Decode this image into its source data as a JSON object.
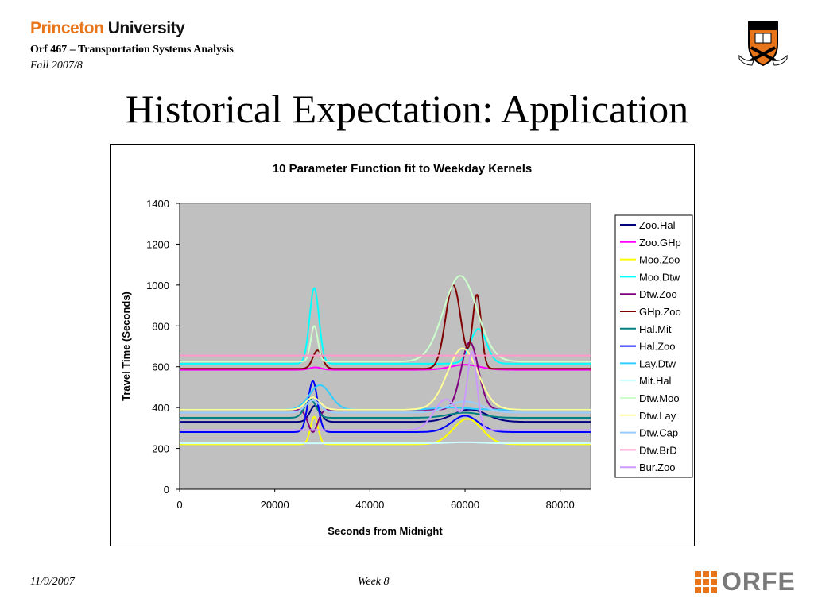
{
  "header": {
    "logo_part1": "Princeton",
    "logo_part2": "University",
    "course": "Orf 467 – Transportation Systems Analysis",
    "term": "Fall 2007/8"
  },
  "slide_title": "Historical Expectation: Application",
  "footer": {
    "date": "11/9/2007",
    "week": "Week 8",
    "orfe_logo": "ORFE"
  },
  "chart_data": {
    "type": "line",
    "title": "10 Parameter Function fit to Weekday Kernels",
    "xlabel": "Seconds from Midnight",
    "ylabel": "Travel Time (Seconds)",
    "xlim": [
      0,
      86400
    ],
    "ylim": [
      0,
      1400
    ],
    "xticks": [
      0,
      20000,
      40000,
      60000,
      80000
    ],
    "yticks": [
      0,
      200,
      400,
      600,
      800,
      1000,
      1200,
      1400
    ],
    "plot_background": "#c0c0c0",
    "grid": false,
    "legend_position": "right",
    "series": [
      {
        "name": "Zoo.Hal",
        "color": "#000080",
        "base": 330,
        "peaks": [
          [
            28500,
            1100,
            80
          ],
          [
            61000,
            3500,
            60
          ]
        ]
      },
      {
        "name": "Zoo.GHp",
        "color": "#ff00ff",
        "base": 585,
        "peaks": [
          [
            28500,
            1200,
            12
          ],
          [
            60000,
            3000,
            25
          ]
        ]
      },
      {
        "name": "Moo.Zoo",
        "color": "#ffff00",
        "base": 220,
        "peaks": [
          [
            28300,
            800,
            135
          ],
          [
            60500,
            3000,
            125
          ]
        ]
      },
      {
        "name": "Moo.Dtw",
        "color": "#00ffff",
        "base": 615,
        "peaks": [
          [
            28300,
            1000,
            370
          ],
          [
            62800,
            1700,
            170
          ]
        ]
      },
      {
        "name": "Dtw.Zoo",
        "color": "#800080",
        "base": 390,
        "peaks": [
          [
            28000,
            1000,
            -110
          ],
          [
            61000,
            1800,
            330
          ]
        ]
      },
      {
        "name": "GHp.Zoo",
        "color": "#800000",
        "base": 590,
        "peaks": [
          [
            29000,
            1000,
            90
          ],
          [
            57500,
            1600,
            410
          ],
          [
            62500,
            900,
            360
          ]
        ]
      },
      {
        "name": "Hal.Mit",
        "color": "#008080",
        "base": 350,
        "peaks": [
          [
            27500,
            1200,
            90
          ],
          [
            60000,
            3500,
            25
          ]
        ]
      },
      {
        "name": "Hal.Zoo",
        "color": "#0000ff",
        "base": 280,
        "peaks": [
          [
            28000,
            1000,
            250
          ],
          [
            60000,
            2800,
            80
          ]
        ]
      },
      {
        "name": "Lay.Dtw",
        "color": "#33ccff",
        "base": 390,
        "peaks": [
          [
            29500,
            2200,
            120
          ],
          [
            57000,
            3500,
            10
          ]
        ]
      },
      {
        "name": "Mit.Hal",
        "color": "#ccffff",
        "base": 225,
        "peaks": [
          [
            60000,
            3500,
            5
          ]
        ]
      },
      {
        "name": "Dtw.Moo",
        "color": "#ccffcc",
        "base": 625,
        "peaks": [
          [
            28300,
            750,
            175
          ],
          [
            59000,
            3500,
            420
          ]
        ]
      },
      {
        "name": "Dtw.Lay",
        "color": "#ffff99",
        "base": 390,
        "peaks": [
          [
            28000,
            1500,
            60
          ],
          [
            59500,
            3200,
            300
          ]
        ]
      },
      {
        "name": "Dtw.Cap",
        "color": "#99ccff",
        "base": 375,
        "peaks": [
          [
            28000,
            1500,
            60
          ],
          [
            60000,
            3500,
            55
          ]
        ]
      },
      {
        "name": "Dtw.BrD",
        "color": "#ff99cc",
        "base": 655,
        "peaks": []
      },
      {
        "name": "Bur.Zoo",
        "color": "#cc99ff",
        "base": 290,
        "peaks": [
          [
            56000,
            2500,
            150
          ],
          [
            61500,
            1000,
            370
          ]
        ]
      }
    ]
  }
}
